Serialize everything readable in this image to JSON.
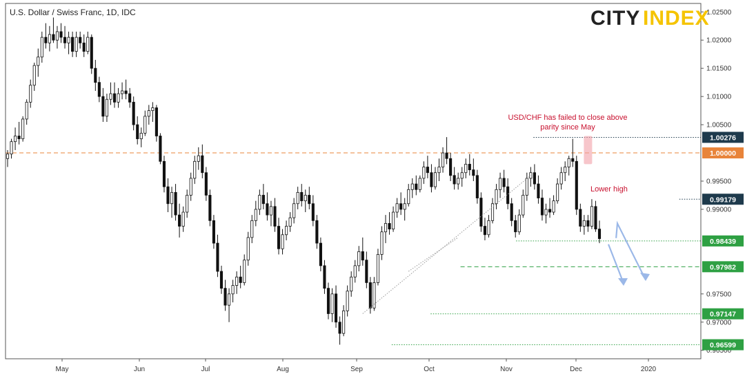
{
  "chart_data": {
    "type": "candlestick",
    "title": "U.S. Dollar / Swiss Franc, 1D, IDC",
    "brand": {
      "part1": "CITY",
      "part2": "INDEX",
      "color1": "#222222",
      "color2": "#f5c400"
    },
    "x_tick_labels": [
      "May",
      "Jun",
      "Jul",
      "Aug",
      "Sep",
      "Oct",
      "Nov",
      "Dec",
      "2020"
    ],
    "y_tick_labels": [
      "1.02500",
      "1.02000",
      "1.01500",
      "1.01000",
      "1.00500",
      "0.99500",
      "0.99000",
      "0.97500",
      "0.97000",
      "0.96500"
    ],
    "ylim": [
      0.9635,
      1.0265
    ],
    "candles": [
      [
        0.999,
        1.0005,
        0.9975,
        0.9998
      ],
      [
        0.9998,
        1.0025,
        0.999,
        1.002
      ],
      [
        1.002,
        1.0045,
        1.0005,
        1.003
      ],
      [
        1.003,
        1.0055,
        1.0015,
        1.0025
      ],
      [
        1.0025,
        1.0065,
        1.002,
        1.006
      ],
      [
        1.006,
        1.0095,
        1.005,
        1.009
      ],
      [
        1.009,
        1.013,
        1.008,
        1.012
      ],
      [
        1.012,
        1.016,
        1.011,
        1.0155
      ],
      [
        1.0155,
        1.0185,
        1.0135,
        1.017
      ],
      [
        1.017,
        1.0215,
        1.016,
        1.0205
      ],
      [
        1.0205,
        1.023,
        1.0185,
        1.0195
      ],
      [
        1.0195,
        1.0225,
        1.018,
        1.021
      ],
      [
        1.021,
        1.024,
        1.0195,
        1.02
      ],
      [
        1.02,
        1.0225,
        1.0185,
        1.0215
      ],
      [
        1.0215,
        1.023,
        1.0195,
        1.0205
      ],
      [
        1.0205,
        1.0225,
        1.0185,
        1.0195
      ],
      [
        1.0195,
        1.0215,
        1.0175,
        1.0205
      ],
      [
        1.0205,
        1.0215,
        1.017,
        1.018
      ],
      [
        1.018,
        1.0215,
        1.017,
        1.0205
      ],
      [
        1.0205,
        1.0215,
        1.0185,
        1.0195
      ],
      [
        1.0195,
        1.021,
        1.017,
        1.018
      ],
      [
        1.018,
        1.0215,
        1.0175,
        1.0205
      ],
      [
        1.0205,
        1.021,
        1.014,
        1.015
      ],
      [
        1.015,
        1.0165,
        1.011,
        1.0125
      ],
      [
        1.0125,
        1.0135,
        1.009,
        1.01
      ],
      [
        1.01,
        1.0115,
        1.0055,
        1.0065
      ],
      [
        1.0065,
        1.0105,
        1.0055,
        1.0095
      ],
      [
        1.0095,
        1.0125,
        1.0085,
        1.0105
      ],
      [
        1.0105,
        1.0125,
        1.008,
        1.009
      ],
      [
        1.009,
        1.0115,
        1.008,
        1.0105
      ],
      [
        1.0105,
        1.0125,
        1.0095,
        1.011
      ],
      [
        1.011,
        1.013,
        1.0095,
        1.0105
      ],
      [
        1.0105,
        1.0115,
        1.008,
        1.009
      ],
      [
        1.009,
        1.01,
        1.004,
        1.005
      ],
      [
        1.005,
        1.0065,
        1.0015,
        1.0025
      ],
      [
        1.0025,
        1.0045,
        1.001,
        1.0035
      ],
      [
        1.0035,
        1.0075,
        1.003,
        1.0065
      ],
      [
        1.0065,
        1.0085,
        1.005,
        1.0075
      ],
      [
        1.0075,
        1.009,
        1.0055,
        1.008
      ],
      [
        1.008,
        1.0085,
        1.002,
        1.003
      ],
      [
        1.003,
        1.0035,
        0.998,
        0.9985
      ],
      [
        0.9985,
        0.9995,
        0.993,
        0.994
      ],
      [
        0.994,
        0.9955,
        0.9895,
        0.991
      ],
      [
        0.991,
        0.994,
        0.9885,
        0.993
      ],
      [
        0.993,
        0.9945,
        0.988,
        0.989
      ],
      [
        0.989,
        0.991,
        0.985,
        0.987
      ],
      [
        0.987,
        0.9905,
        0.986,
        0.9895
      ],
      [
        0.9895,
        0.9935,
        0.9885,
        0.9925
      ],
      [
        0.9925,
        0.9965,
        0.9915,
        0.9955
      ],
      [
        0.9955,
        0.9995,
        0.9945,
        0.9985
      ],
      [
        0.9985,
        1.001,
        0.997,
        0.9995
      ],
      [
        0.9995,
        1.0015,
        0.9955,
        0.9965
      ],
      [
        0.9965,
        0.9975,
        0.9915,
        0.9925
      ],
      [
        0.9925,
        0.9935,
        0.987,
        0.988
      ],
      [
        0.988,
        0.989,
        0.983,
        0.984
      ],
      [
        0.984,
        0.9855,
        0.978,
        0.979
      ],
      [
        0.979,
        0.98,
        0.975,
        0.976
      ],
      [
        0.976,
        0.9775,
        0.972,
        0.973
      ],
      [
        0.973,
        0.976,
        0.97,
        0.975
      ],
      [
        0.975,
        0.9775,
        0.9735,
        0.9765
      ],
      [
        0.9765,
        0.979,
        0.975,
        0.978
      ],
      [
        0.978,
        0.98,
        0.976,
        0.977
      ],
      [
        0.977,
        0.982,
        0.9765,
        0.981
      ],
      [
        0.981,
        0.986,
        0.98,
        0.985
      ],
      [
        0.985,
        0.989,
        0.984,
        0.988
      ],
      [
        0.988,
        0.9915,
        0.987,
        0.99
      ],
      [
        0.99,
        0.9935,
        0.989,
        0.9925
      ],
      [
        0.9925,
        0.9945,
        0.99,
        0.991
      ],
      [
        0.991,
        0.993,
        0.988,
        0.989
      ],
      [
        0.989,
        0.9915,
        0.987,
        0.9905
      ],
      [
        0.9905,
        0.992,
        0.986,
        0.987
      ],
      [
        0.987,
        0.9885,
        0.982,
        0.983
      ],
      [
        0.983,
        0.9865,
        0.982,
        0.9855
      ],
      [
        0.9855,
        0.988,
        0.9845,
        0.987
      ],
      [
        0.987,
        0.9895,
        0.986,
        0.9885
      ],
      [
        0.9885,
        0.992,
        0.9875,
        0.991
      ],
      [
        0.991,
        0.994,
        0.99,
        0.993
      ],
      [
        0.993,
        0.9945,
        0.9905,
        0.9915
      ],
      [
        0.9915,
        0.9935,
        0.9895,
        0.9925
      ],
      [
        0.9925,
        0.994,
        0.99,
        0.991
      ],
      [
        0.991,
        0.9925,
        0.987,
        0.988
      ],
      [
        0.988,
        0.989,
        0.983,
        0.984
      ],
      [
        0.984,
        0.985,
        0.979,
        0.98
      ],
      [
        0.98,
        0.981,
        0.975,
        0.976
      ],
      [
        0.976,
        0.977,
        0.9705,
        0.9715
      ],
      [
        0.9715,
        0.976,
        0.97,
        0.975
      ],
      [
        0.975,
        0.9765,
        0.969,
        0.97
      ],
      [
        0.97,
        0.971,
        0.966,
        0.968
      ],
      [
        0.968,
        0.973,
        0.9675,
        0.972
      ],
      [
        0.972,
        0.9765,
        0.971,
        0.9755
      ],
      [
        0.9755,
        0.979,
        0.9745,
        0.978
      ],
      [
        0.978,
        0.981,
        0.977,
        0.98
      ],
      [
        0.98,
        0.9835,
        0.979,
        0.9825
      ],
      [
        0.9825,
        0.985,
        0.98,
        0.981
      ],
      [
        0.981,
        0.9825,
        0.976,
        0.977
      ],
      [
        0.977,
        0.978,
        0.9715,
        0.9725
      ],
      [
        0.9725,
        0.978,
        0.972,
        0.977
      ],
      [
        0.977,
        0.983,
        0.9765,
        0.982
      ],
      [
        0.982,
        0.987,
        0.981,
        0.986
      ],
      [
        0.986,
        0.989,
        0.984,
        0.9875
      ],
      [
        0.9875,
        0.9895,
        0.9855,
        0.9865
      ],
      [
        0.9865,
        0.9905,
        0.986,
        0.9895
      ],
      [
        0.9895,
        0.992,
        0.9885,
        0.991
      ],
      [
        0.991,
        0.993,
        0.989,
        0.99
      ],
      [
        0.99,
        0.992,
        0.988,
        0.991
      ],
      [
        0.991,
        0.9945,
        0.9905,
        0.9935
      ],
      [
        0.9935,
        0.9955,
        0.992,
        0.9945
      ],
      [
        0.9945,
        0.996,
        0.9925,
        0.9935
      ],
      [
        0.9935,
        0.996,
        0.993,
        0.9955
      ],
      [
        0.9955,
        0.9985,
        0.9945,
        0.9975
      ],
      [
        0.9975,
        0.9995,
        0.9955,
        0.9965
      ],
      [
        0.9965,
        0.998,
        0.993,
        0.994
      ],
      [
        0.994,
        0.9975,
        0.9935,
        0.9965
      ],
      [
        0.9965,
        0.999,
        0.995,
        0.9975
      ],
      [
        0.9975,
        1.001,
        0.9965,
        1.0
      ],
      [
        1.0,
        1.0028,
        0.998,
        0.999
      ],
      [
        0.999,
        1.0,
        0.995,
        0.996
      ],
      [
        0.996,
        0.9975,
        0.9935,
        0.9945
      ],
      [
        0.9945,
        0.9965,
        0.9935,
        0.9955
      ],
      [
        0.9955,
        0.9975,
        0.994,
        0.9965
      ],
      [
        0.9965,
        0.999,
        0.9955,
        0.998
      ],
      [
        0.998,
        0.9998,
        0.996,
        0.997
      ],
      [
        0.997,
        0.999,
        0.995,
        0.996
      ],
      [
        0.996,
        0.997,
        0.991,
        0.992
      ],
      [
        0.992,
        0.993,
        0.986,
        0.987
      ],
      [
        0.987,
        0.9885,
        0.9845,
        0.9855
      ],
      [
        0.9855,
        0.989,
        0.985,
        0.988
      ],
      [
        0.988,
        0.992,
        0.9875,
        0.991
      ],
      [
        0.991,
        0.9945,
        0.99,
        0.9935
      ],
      [
        0.9935,
        0.9965,
        0.992,
        0.9955
      ],
      [
        0.9955,
        0.997,
        0.993,
        0.994
      ],
      [
        0.994,
        0.9955,
        0.99,
        0.991
      ],
      [
        0.991,
        0.992,
        0.987,
        0.988
      ],
      [
        0.988,
        0.989,
        0.985,
        0.986
      ],
      [
        0.986,
        0.99,
        0.9855,
        0.989
      ],
      [
        0.989,
        0.9935,
        0.9885,
        0.9925
      ],
      [
        0.9925,
        0.9965,
        0.9915,
        0.9955
      ],
      [
        0.9955,
        0.9975,
        0.994,
        0.9965
      ],
      [
        0.9965,
        0.998,
        0.9935,
        0.9945
      ],
      [
        0.9945,
        0.996,
        0.991,
        0.992
      ],
      [
        0.992,
        0.9935,
        0.988,
        0.989
      ],
      [
        0.989,
        0.991,
        0.9875,
        0.99
      ],
      [
        0.99,
        0.992,
        0.9885,
        0.9895
      ],
      [
        0.9895,
        0.9925,
        0.989,
        0.9915
      ],
      [
        0.9915,
        0.9955,
        0.991,
        0.9945
      ],
      [
        0.9945,
        0.9975,
        0.9935,
        0.9965
      ],
      [
        0.9965,
        0.9985,
        0.995,
        0.9975
      ],
      [
        0.9975,
        0.9995,
        0.996,
        0.999
      ],
      [
        0.999,
        1.0025,
        0.9975,
        0.9985
      ],
      [
        0.9985,
        0.9995,
        0.989,
        0.99
      ],
      [
        0.99,
        0.991,
        0.986,
        0.987
      ],
      [
        0.987,
        0.989,
        0.9855,
        0.988
      ],
      [
        0.988,
        0.989,
        0.986,
        0.987
      ],
      [
        0.987,
        0.9918,
        0.9865,
        0.9905
      ],
      [
        0.9905,
        0.9915,
        0.986,
        0.9865
      ],
      [
        0.9865,
        0.988,
        0.984,
        0.9848
      ]
    ],
    "levels": [
      {
        "value": 1.00276,
        "label": "1.00276",
        "line_color": "#1e3a4c",
        "badge_color": "#1e3a4c",
        "dash": "dotted",
        "x_start": 0.76
      },
      {
        "value": 1.0,
        "label": "1.00000",
        "line_color": "#e8843a",
        "badge_color": "#e8843a",
        "dash": "dashed",
        "x_start": 0.0
      },
      {
        "value": 0.99179,
        "label": "0.99179",
        "line_color": "#1e3a4c",
        "badge_color": "#1e3a4c",
        "dash": "dotted",
        "x_start": 0.97
      },
      {
        "value": 0.98439,
        "label": "0.98439",
        "line_color": "#2ea043",
        "badge_color": "#2ea043",
        "dash": "dotted",
        "x_start": 0.735
      },
      {
        "value": 0.97982,
        "label": "0.97982",
        "line_color": "#2ea043",
        "badge_color": "#2ea043",
        "dash": "dashed",
        "x_start": 0.655
      },
      {
        "value": 0.97147,
        "label": "0.97147",
        "line_color": "#2ea043",
        "badge_color": "#2ea043",
        "dash": "dotted",
        "x_start": 0.612
      },
      {
        "value": 0.96599,
        "label": "0.96599",
        "line_color": "#2ea043",
        "badge_color": "#2ea043",
        "dash": "dotted",
        "x_start": 0.556
      }
    ],
    "annotations": [
      {
        "text": "USD/CHF has failed to close above",
        "color": "#c8102e"
      },
      {
        "text": "parity since May",
        "color": "#c8102e"
      },
      {
        "text": "Lower high",
        "color": "#c8102e"
      }
    ],
    "colors": {
      "up": "#ffffff",
      "down": "#111111",
      "wick": "#111111",
      "arrow": "#9bb8e8",
      "highlight": "#f2a0a8"
    }
  }
}
